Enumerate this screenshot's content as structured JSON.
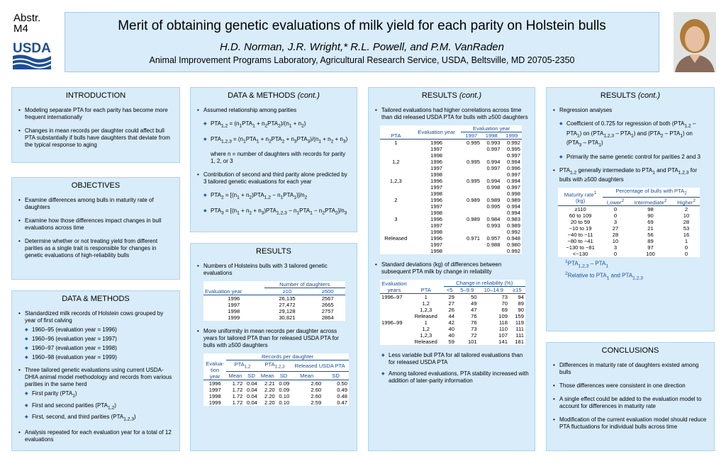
{
  "abstract": {
    "line1": "Abstr.",
    "line2": "M4"
  },
  "logo": {
    "text": "USDA"
  },
  "header": {
    "title": "Merit of obtaining genetic evaluations of milk yield for each parity on Holstein bulls",
    "authors": "H.D. Norman, J.R. Wright,* R.L. Powell, and P.M. VanRaden",
    "affiliation": "Animal Improvement Programs Laboratory, Agricultural Research Service, USDA, Beltsville, MD 20705-2350"
  },
  "introduction": {
    "title": "INTRODUCTION",
    "bullets": [
      "Modeling separate PTA for each parity has become more frequent internationally",
      "Changes in mean records per daughter could affect bull PTA substantially if bulls have daughters that deviate from the typical response to aging"
    ]
  },
  "objectives": {
    "title": "OBJECTIVES",
    "bullets": [
      "Examine differences among bulls in maturity rate of daughters",
      "Examine how those differences impact changes in bull evaluations across time",
      "Determine whether or not treating yield from different parities as a single trait is responsible for changes in genetic evaluations of high-reliability bulls"
    ]
  },
  "dm1": {
    "title": "DATA & METHODS",
    "b1": "Standardized milk records of Holstein cows grouped by year of first calving",
    "subs1": [
      "1960–95 (evaluation year = 1996)",
      "1960–96 (evaluation year = 1997)",
      "1960–97 (evaluation year = 1998)",
      "1960–98 (evaluation year = 1999)"
    ],
    "b2": "Three tailored genetic evaluations using current USDA-DHIA animal model methodology and records from various parities in the same herd",
    "s2a": "First parity (PTA",
    "s2a_sub": "1",
    "s2a_end": ")",
    "s2b": "First and second parities (PTA",
    "s2b_sub": "1,2",
    "s2b_end": ")",
    "s2c": "First, second, and third parities (PTA",
    "s2c_sub": "1,2,3",
    "s2c_end": ")",
    "b3": "Analysis repeated for each evaluation year for a total of 12 evaluations"
  },
  "dm2": {
    "title": "DATA & METHODS",
    "title_cont": "(cont.)",
    "b1": "Assumed relationship among parities",
    "where": "where n = number of daughters with records for parity 1, 2, or 3",
    "b2": "Contribution of second and third parity alone predicted by 3 tailored genetic evaluations for each year"
  },
  "results1": {
    "title": "RESULTS",
    "b1": "Numbers of Holsteins bulls with 3 tailored genetic evaluations",
    "t1": {
      "group": "Number of daughters",
      "col0": "Evaluation year",
      "col1": "≥10",
      "col2": "≥500",
      "rows": [
        [
          "1996",
          "26,135",
          "2567"
        ],
        [
          "1997",
          "27,472",
          "2665"
        ],
        [
          "1998",
          "29,128",
          "2757"
        ],
        [
          "1999",
          "30,821",
          "2864"
        ]
      ]
    },
    "b2": "More uniformity in mean records per daughter across years for tailored PTA than for released USDA PTA for bulls with ≥500 daughters",
    "t2": {
      "group": "Records per daughter",
      "col0": "Evalua-\ntion\nyear",
      "g1": "PTA",
      "g1_sub": "1,2",
      "g2": "PTA",
      "g2_sub": "1,2,3",
      "g3": "Released USDA PTA",
      "mean": "Mean",
      "sd": "SD",
      "rows": [
        [
          "1996",
          "1.72",
          "0.04",
          "2.21",
          "0.09",
          "2.60",
          "0.50"
        ],
        [
          "1997",
          "1.72",
          "0.04",
          "2.20",
          "0.09",
          "2.60",
          "0.49"
        ],
        [
          "1998",
          "1.72",
          "0.04",
          "2.20",
          "0.10",
          "2.60",
          "0.48"
        ],
        [
          "1999",
          "1.72",
          "0.04",
          "2.20",
          "0.10",
          "2.59",
          "0.47"
        ]
      ]
    }
  },
  "results2": {
    "title": "RESULTS",
    "title_cont": "(cont.)",
    "b1": "Tailored evaluations had higher correlations across time than did released USDA PTA for bulls with ≥500 daughters",
    "t1": {
      "pta": "PTA",
      "eval": "Evaluation year",
      "group": "Evaluation year",
      "years": [
        "1997",
        "1998",
        "1999"
      ],
      "blocks": [
        {
          "label": "1",
          "rows": [
            [
              "1996",
              "0.995",
              "0.993",
              "0.992"
            ],
            [
              "1997",
              "",
              "0.997",
              "0.995"
            ],
            [
              "1998",
              "",
              "",
              "0.997"
            ]
          ]
        },
        {
          "label": "1,2",
          "rows": [
            [
              "1996",
              "0.995",
              "0.994",
              "0.994"
            ],
            [
              "1997",
              "",
              "0.997",
              "0.996"
            ],
            [
              "1998",
              "",
              "",
              "0.997"
            ]
          ]
        },
        {
          "label": "1,2,3",
          "rows": [
            [
              "1996",
              "0.995",
              "0.994",
              "0.994"
            ],
            [
              "1997",
              "",
              "0.998",
              "0.997"
            ],
            [
              "1998",
              "",
              "",
              "0.998"
            ]
          ]
        },
        {
          "label": "2",
          "rows": [
            [
              "1996",
              "0.989",
              "0.989",
              "0.989"
            ],
            [
              "1997",
              "",
              "0.995",
              "0.994"
            ],
            [
              "1998",
              "",
              "",
              "0.994"
            ]
          ]
        },
        {
          "label": "3",
          "rows": [
            [
              "1996",
              "0.989",
              "0.984",
              "0.983"
            ],
            [
              "1997",
              "",
              "0.993",
              "0.989"
            ],
            [
              "1998",
              "",
              "",
              "0.992"
            ]
          ]
        },
        {
          "label": "Released",
          "rows": [
            [
              "1996",
              "0.971",
              "0.957",
              "0.948"
            ],
            [
              "1997",
              "",
              "0.988",
              "0.980"
            ],
            [
              "1998",
              "",
              "",
              "0.992"
            ]
          ]
        }
      ]
    },
    "b2": "Standard deviations (kg) of differences between subsequent PTA milk by change in reliability",
    "t2": {
      "group": "Change in reliability (%)",
      "col0": "Evaluation years",
      "col1": "PTA",
      "cols": [
        "<5",
        "5–9.9",
        "10–14.9",
        "≥15"
      ],
      "rows": [
        [
          "1996–97",
          "1",
          "29",
          "50",
          "73",
          "94"
        ],
        [
          "",
          "1,2",
          "27",
          "49",
          "70",
          "89"
        ],
        [
          "",
          "1,2,3",
          "26",
          "47",
          "69",
          "90"
        ],
        [
          "",
          "Released",
          "44",
          "76",
          "109",
          "159"
        ],
        [
          "1996–99",
          "1",
          "42",
          "76",
          "118",
          "119"
        ],
        [
          "",
          "1,2",
          "40",
          "73",
          "110",
          "111"
        ],
        [
          "",
          "1,2,3",
          "40",
          "72",
          "107",
          "111"
        ],
        [
          "",
          "Released",
          "59",
          "101",
          "141",
          "181"
        ]
      ]
    },
    "s1": "Less variable bull PTA for all tailored evaluations than for released USDA PTA",
    "s2": "Among tailored evaluations, PTA stability increased with addition of later-parity information"
  },
  "results3": {
    "title": "RESULTS",
    "title_cont": "(cont.)",
    "b1": "Regression analyses",
    "s1": "Coefficient of 0.725 for regression of both",
    "s2": "Primarily the same genetic control for parities 2 and 3",
    "b2_pre": "PTA",
    "b2_mid": "generally intermediate to PTA",
    "b2_and": "and PTA",
    "b2_end": "for bulls with ≥500 daughters",
    "t": {
      "col0": "Maturity rate",
      "col0_sup": "1",
      "col0_unit": "(kg)",
      "group": "Percentage of bulls with PTA",
      "group_sub": "2",
      "lower": "Lower",
      "inter": "Intermediate",
      "higher": "Higher",
      "sup2": "2",
      "rows": [
        [
          "≥110",
          "0",
          "98",
          "2"
        ],
        [
          "60  to 109",
          "0",
          "90",
          "10"
        ],
        [
          "20  to   59",
          "3",
          "69",
          "28"
        ],
        [
          "−10  to   19",
          "27",
          "21",
          "53"
        ],
        [
          "−40  to −11",
          "28",
          "56",
          "16"
        ],
        [
          "−80  to −41",
          "10",
          "89",
          "1"
        ],
        [
          "−130  to −81",
          "3",
          "97",
          "0"
        ],
        [
          "<−130",
          "0",
          "100",
          "0"
        ]
      ]
    },
    "fn1_sup": "1",
    "fn2_sup": "2",
    "fn2_text": "Relative to PTA"
  },
  "conclusions": {
    "title": "CONCLUSIONS",
    "bullets": [
      "Differences in maturity rate of daughters existed among bulls",
      "Those differences were consistent in one direction",
      "A single effect could be added to the evaluation model to account for differences in maturity rate",
      "Modification of the current evaluation model should reduce PTA fluctuations for individual bulls across time"
    ]
  }
}
